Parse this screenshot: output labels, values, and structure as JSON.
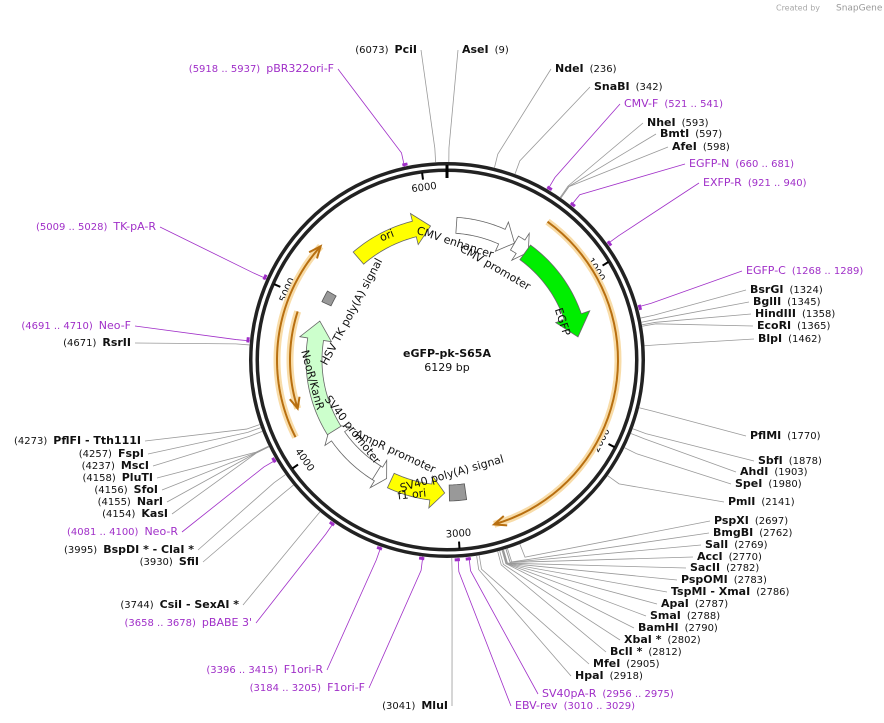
{
  "header": {
    "credit": "Created by",
    "brand": "SnapGene"
  },
  "plasmid": {
    "name": "eGFP-pk-S65A",
    "length": "6129 bp"
  },
  "ruler": [
    1000,
    2000,
    3000,
    4000,
    5000,
    6000
  ],
  "features": [
    {
      "label": "ori"
    },
    {
      "label": "CMV enhancer"
    },
    {
      "label": "CMV promoter"
    },
    {
      "label": "EGFP"
    },
    {
      "label": "SV40 poly(A) signal"
    },
    {
      "label": "f1 ori"
    },
    {
      "label": "AmpR promoter"
    },
    {
      "label": "SV40 promoter"
    },
    {
      "label": "NeoR/KanR"
    },
    {
      "label": "HSV TK poly(A) signal"
    }
  ],
  "enzymes": [
    {
      "name": "PciI",
      "site": "(6073)"
    },
    {
      "name": "AseI",
      "site": "(9)"
    },
    {
      "name": "NdeI",
      "site": "(236)"
    },
    {
      "name": "SnaBI",
      "site": "(342)"
    },
    {
      "name": "NheI",
      "site": "(593)"
    },
    {
      "name": "BmtI",
      "site": "(597)"
    },
    {
      "name": "AfeI",
      "site": "(598)"
    },
    {
      "name": "BsrGI",
      "site": "(1324)"
    },
    {
      "name": "BglII",
      "site": "(1345)"
    },
    {
      "name": "HindIII",
      "site": "(1358)"
    },
    {
      "name": "EcoRI",
      "site": "(1365)"
    },
    {
      "name": "BlpI",
      "site": "(1462)"
    },
    {
      "name": "PflMI",
      "site": "(1770)"
    },
    {
      "name": "SbfI",
      "site": "(1878)"
    },
    {
      "name": "AhdI",
      "site": "(1903)"
    },
    {
      "name": "SpeI",
      "site": "(1980)"
    },
    {
      "name": "PmlI",
      "site": "(2141)"
    },
    {
      "name": "PspXI",
      "site": "(2697)"
    },
    {
      "name": "BmgBI",
      "site": "(2762)"
    },
    {
      "name": "SalI",
      "site": "(2769)"
    },
    {
      "name": "AccI",
      "site": "(2770)"
    },
    {
      "name": "SacII",
      "site": "(2782)"
    },
    {
      "name": "PspOMI",
      "site": "(2783)"
    },
    {
      "name": "TspMI  -  XmaI",
      "site": "(2786)"
    },
    {
      "name": "ApaI",
      "site": "(2787)"
    },
    {
      "name": "SmaI",
      "site": "(2788)"
    },
    {
      "name": "BamHI",
      "site": "(2790)"
    },
    {
      "name": "XbaI *",
      "site": "(2802)"
    },
    {
      "name": "BclI *",
      "site": "(2812)"
    },
    {
      "name": "MfeI",
      "site": "(2905)"
    },
    {
      "name": "HpaI",
      "site": "(2918)"
    },
    {
      "name": "MluI",
      "site": "(3041)"
    },
    {
      "name": "RsrII",
      "site": "(4671)"
    },
    {
      "name": "PflFI  -  Tth111I",
      "site": "(4273)"
    },
    {
      "name": "FspI",
      "site": "(4257)"
    },
    {
      "name": "MscI",
      "site": "(4237)"
    },
    {
      "name": "PluTI",
      "site": "(4158)"
    },
    {
      "name": "SfoI",
      "site": "(4156)"
    },
    {
      "name": "NarI",
      "site": "(4155)"
    },
    {
      "name": "KasI",
      "site": "(4154)"
    },
    {
      "name": "BspDI *  -  ClaI *",
      "site": "(3995)"
    },
    {
      "name": "SfiI",
      "site": "(3930)"
    },
    {
      "name": "CsiI  -  SexAI *",
      "site": "(3744)"
    }
  ],
  "primers": [
    {
      "name": "pBR322ori-F",
      "range": "(5918 .. 5937)"
    },
    {
      "name": "CMV-F",
      "range": "(521 .. 541)"
    },
    {
      "name": "EGFP-N",
      "range": "(660 .. 681)"
    },
    {
      "name": "EXFP-R",
      "range": "(921 .. 940)"
    },
    {
      "name": "EGFP-C",
      "range": "(1268 .. 1289)"
    },
    {
      "name": "TK-pA-R",
      "range": "(5009 .. 5028)"
    },
    {
      "name": "Neo-F",
      "range": "(4691 .. 4710)"
    },
    {
      "name": "Neo-R",
      "range": "(4081 .. 4100)"
    },
    {
      "name": "pBABE 3'",
      "range": "(3658 .. 3678)"
    },
    {
      "name": "F1ori-R",
      "range": "(3396 .. 3415)"
    },
    {
      "name": "F1ori-F",
      "range": "(3184 .. 3205)"
    },
    {
      "name": "EBV-rev",
      "range": "(3010 .. 3029)"
    },
    {
      "name": "SV40pA-R",
      "range": "(2956 .. 2975)"
    }
  ]
}
